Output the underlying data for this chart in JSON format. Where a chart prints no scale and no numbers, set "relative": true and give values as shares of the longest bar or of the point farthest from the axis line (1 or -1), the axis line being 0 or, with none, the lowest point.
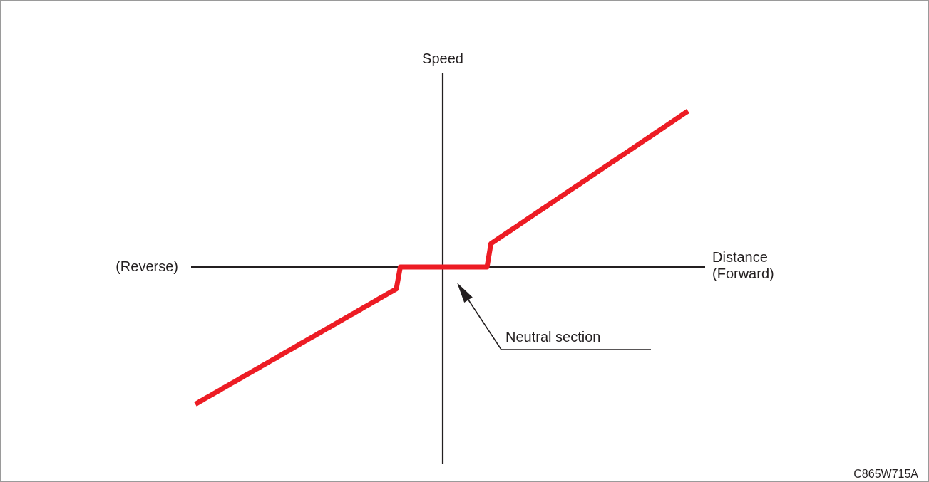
{
  "chart_data": {
    "type": "line",
    "relative": true,
    "categories": [
      null,
      null,
      null,
      null,
      null,
      null,
      null,
      null,
      null,
      null,
      null,
      null,
      null,
      null,
      null,
      null,
      null,
      null,
      null,
      null,
      null,
      null,
      null,
      null,
      null,
      null,
      null,
      null,
      null,
      null,
      null,
      null,
      null,
      null,
      null,
      null,
      null,
      null,
      null,
      null,
      null,
      null,
      null,
      null,
      null,
      null,
      null,
      null,
      null,
      null,
      null,
      null,
      null,
      null,
      null,
      null,
      null,
      null,
      null,
      null,
      null,
      null,
      null,
      null,
      null,
      null,
      null,
      null,
      null,
      null,
      null,
      null,
      null,
      null,
      null,
      null,
      null,
      null,
      null,
      null,
      null,
      null,
      null,
      null,
      null,
      null,
      null,
      null,
      null,
      null,
      null,
      null,
      null,
      null,
      null,
      null,
      null,
      null,
      null,
      null,
      null,
      null,
      null,
      null,
      null,
      null,
      null,
      null,
      null,
      null,
      null,
      null,
      null,
      null,
      null,
      null,
      null,
      null,
      null,
      null,
      null,
      null,
      null,
      null,
      null,
      null
    ],
    "series": [
      {
        "color": "#ed1c24",
        "values": [
          -0.88,
          -0.865,
          -0.851,
          -0.836,
          -0.822,
          -0.807,
          -0.793,
          -0.778,
          -0.764,
          -0.749,
          -0.735,
          -0.72,
          -0.706,
          -0.691,
          -0.677,
          -0.662,
          -0.648,
          -0.633,
          -0.619,
          -0.604,
          -0.59,
          -0.575,
          -0.561,
          -0.546,
          -0.532,
          -0.517,
          -0.503,
          -0.488,
          -0.474,
          -0.459,
          -0.445,
          -0.43,
          -0.416,
          -0.401,
          -0.387,
          -0.372,
          -0.358,
          -0.343,
          -0.329,
          -0.314,
          -0.3,
          -0.285,
          -0.271,
          -0.256,
          -0.242,
          -0.227,
          -0.213,
          -0.198,
          -0.184,
          -0.169,
          -0.155,
          -0.14,
          0,
          0,
          0,
          0,
          0,
          0,
          0,
          0,
          0,
          0,
          0,
          0,
          0,
          0,
          0,
          0,
          0,
          0,
          0,
          0,
          0,
          0,
          0,
          0.15,
          0.167,
          0.184,
          0.201,
          0.218,
          0.235,
          0.252,
          0.269,
          0.286,
          0.303,
          0.32,
          0.337,
          0.354,
          0.371,
          0.388,
          0.405,
          0.422,
          0.439,
          0.456,
          0.473,
          0.49,
          0.507,
          0.524,
          0.541,
          0.558,
          0.575,
          0.592,
          0.609,
          0.626,
          0.643,
          0.66,
          0.677,
          0.694,
          0.711,
          0.728,
          0.745,
          0.762,
          0.779,
          0.796,
          0.813,
          0.83,
          0.847,
          0.864,
          0.881,
          0.898,
          0.915,
          0.932,
          0.949,
          0.966,
          0.983,
          1
        ]
      }
    ],
    "xlabel": "Distance (Forward)",
    "ylabel": "Speed",
    "annotations": [
      "(Reverse)",
      "Neutral section",
      "C865W715A"
    ],
    "tick_labels": false
  }
}
